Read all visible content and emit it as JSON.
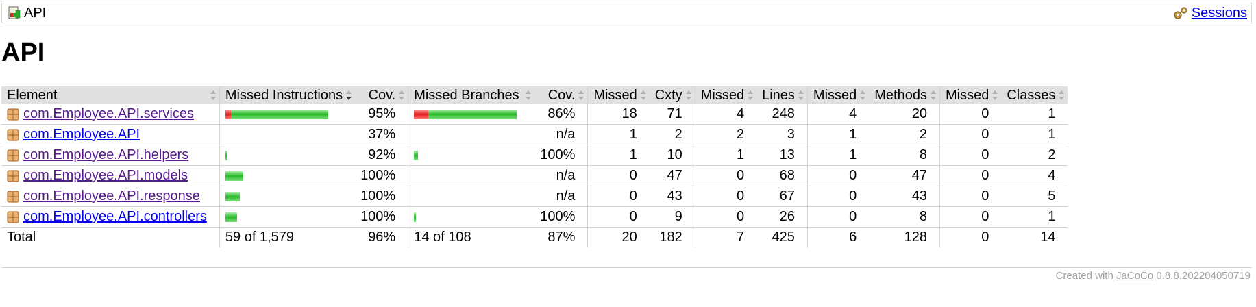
{
  "breadcrumb": {
    "title": "API",
    "sessions_label": "Sessions"
  },
  "page_title": "API",
  "table": {
    "headers": {
      "element": "Element",
      "missed_instructions": "Missed Instructions",
      "cov_instr": "Cov.",
      "missed_branches": "Missed Branches",
      "cov_branch": "Cov.",
      "missed_cxty": "Missed",
      "cxty": "Cxty",
      "missed_lines": "Missed",
      "lines": "Lines",
      "missed_methods": "Missed",
      "methods": "Methods",
      "missed_classes": "Missed",
      "classes": "Classes"
    },
    "rows": [
      {
        "name": "com.Employee.API.services",
        "visited": true,
        "instr_missed_frac": 0.05,
        "instr_bar_total": 1.0,
        "cov_instr": "95%",
        "branch_missed_frac": 0.14,
        "branch_bar_total": 1.0,
        "cov_branch": "86%",
        "missed_cxty": "18",
        "cxty": "71",
        "missed_lines": "4",
        "lines": "248",
        "missed_methods": "4",
        "methods": "20",
        "missed_classes": "0",
        "classes": "1"
      },
      {
        "name": "com.Employee.API",
        "visited": false,
        "instr_missed_frac": 0.63,
        "instr_bar_total": 0.0,
        "cov_instr": "37%",
        "branch_missed_frac": 0,
        "branch_bar_total": 0,
        "cov_branch": "n/a",
        "missed_cxty": "1",
        "cxty": "2",
        "missed_lines": "2",
        "lines": "3",
        "missed_methods": "1",
        "methods": "2",
        "missed_classes": "0",
        "classes": "1"
      },
      {
        "name": "com.Employee.API.helpers",
        "visited": true,
        "instr_missed_frac": 0.08,
        "instr_bar_total": 0.02,
        "cov_instr": "92%",
        "branch_missed_frac": 0,
        "branch_bar_total": 0.04,
        "cov_branch": "100%",
        "missed_cxty": "1",
        "cxty": "10",
        "missed_lines": "1",
        "lines": "13",
        "missed_methods": "1",
        "methods": "8",
        "missed_classes": "0",
        "classes": "2"
      },
      {
        "name": "com.Employee.API.models",
        "visited": true,
        "instr_missed_frac": 0,
        "instr_bar_total": 0.17,
        "cov_instr": "100%",
        "branch_missed_frac": 0,
        "branch_bar_total": 0,
        "cov_branch": "n/a",
        "missed_cxty": "0",
        "cxty": "47",
        "missed_lines": "0",
        "lines": "68",
        "missed_methods": "0",
        "methods": "47",
        "missed_classes": "0",
        "classes": "4"
      },
      {
        "name": "com.Employee.API.response",
        "visited": true,
        "instr_missed_frac": 0,
        "instr_bar_total": 0.14,
        "cov_instr": "100%",
        "branch_missed_frac": 0,
        "branch_bar_total": 0,
        "cov_branch": "n/a",
        "missed_cxty": "0",
        "cxty": "43",
        "missed_lines": "0",
        "lines": "67",
        "missed_methods": "0",
        "methods": "43",
        "missed_classes": "0",
        "classes": "5"
      },
      {
        "name": "com.Employee.API.controllers",
        "visited": false,
        "instr_missed_frac": 0,
        "instr_bar_total": 0.11,
        "cov_instr": "100%",
        "branch_missed_frac": 0,
        "branch_bar_total": 0.02,
        "cov_branch": "100%",
        "missed_cxty": "0",
        "cxty": "9",
        "missed_lines": "0",
        "lines": "26",
        "missed_methods": "0",
        "methods": "8",
        "missed_classes": "0",
        "classes": "1"
      }
    ],
    "total": {
      "label": "Total",
      "missed_instructions": "59 of 1,579",
      "cov_instr": "96%",
      "missed_branches": "14 of 108",
      "cov_branch": "87%",
      "missed_cxty": "20",
      "cxty": "182",
      "missed_lines": "7",
      "lines": "425",
      "missed_methods": "6",
      "methods": "128",
      "missed_classes": "0",
      "classes": "14"
    }
  },
  "footer": {
    "prefix": "Created with",
    "link_label": "JaCoCo",
    "version": "0.8.8.202204050719"
  },
  "colors": {
    "missed": "#e02020",
    "covered": "#28b828",
    "header_bg": "#e0e0e0"
  }
}
